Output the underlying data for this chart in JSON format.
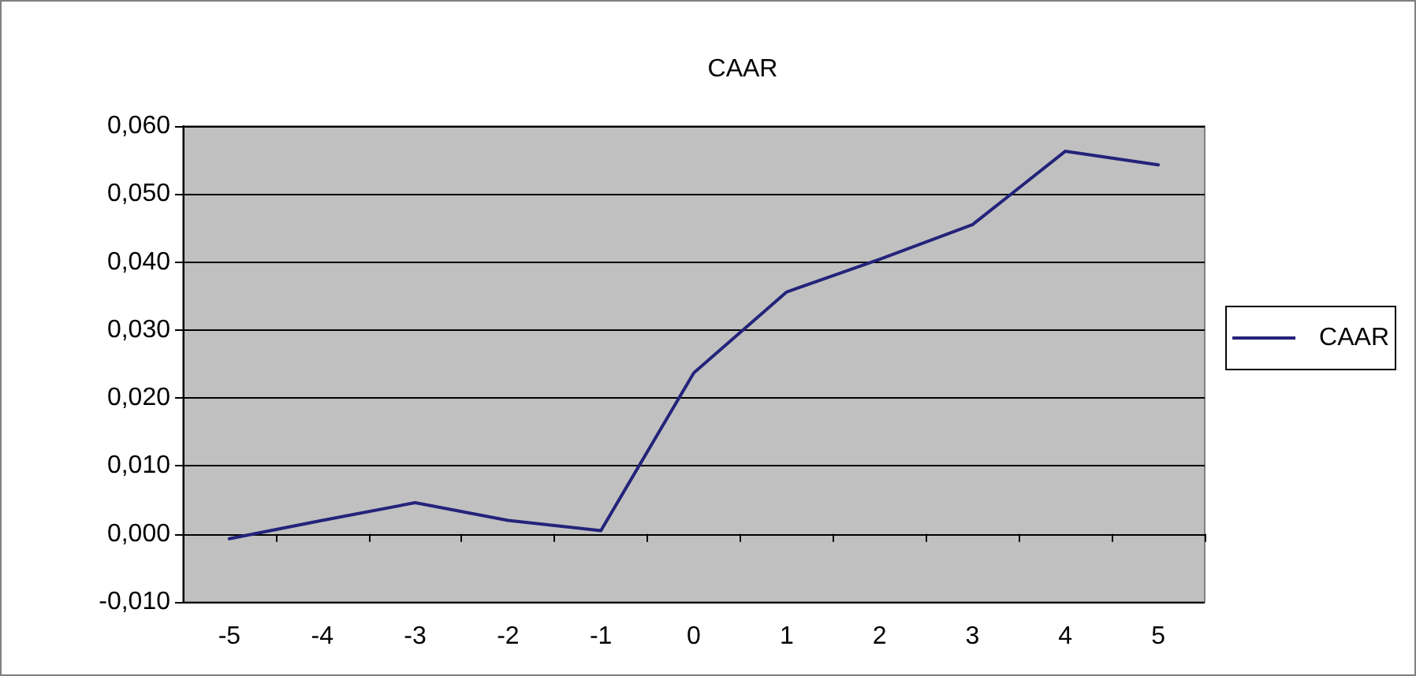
{
  "chart_data": {
    "type": "line",
    "title": "CAAR",
    "categories": [
      "-5",
      "-4",
      "-3",
      "-2",
      "-1",
      "0",
      "1",
      "2",
      "3",
      "4",
      "5"
    ],
    "series": [
      {
        "name": "CAAR",
        "color": "#24237a",
        "values": [
          -0.0007,
          0.002,
          0.0046,
          0.002,
          0.0005,
          0.0237,
          0.0356,
          0.0404,
          0.0455,
          0.0563,
          0.0543
        ]
      }
    ],
    "ylim": [
      -0.01,
      0.06
    ],
    "yticks": [
      {
        "value": -0.01,
        "label": "-0,010"
      },
      {
        "value": 0,
        "label": "0,000"
      },
      {
        "value": 0.01,
        "label": "0,010"
      },
      {
        "value": 0.02,
        "label": "0,020"
      },
      {
        "value": 0.03,
        "label": "0,030"
      },
      {
        "value": 0.04,
        "label": "0,040"
      },
      {
        "value": 0.05,
        "label": "0,050"
      },
      {
        "value": 0.06,
        "label": "0,060"
      }
    ],
    "grid": "y",
    "legend": "right",
    "marker": "none",
    "line_style": "solid"
  }
}
